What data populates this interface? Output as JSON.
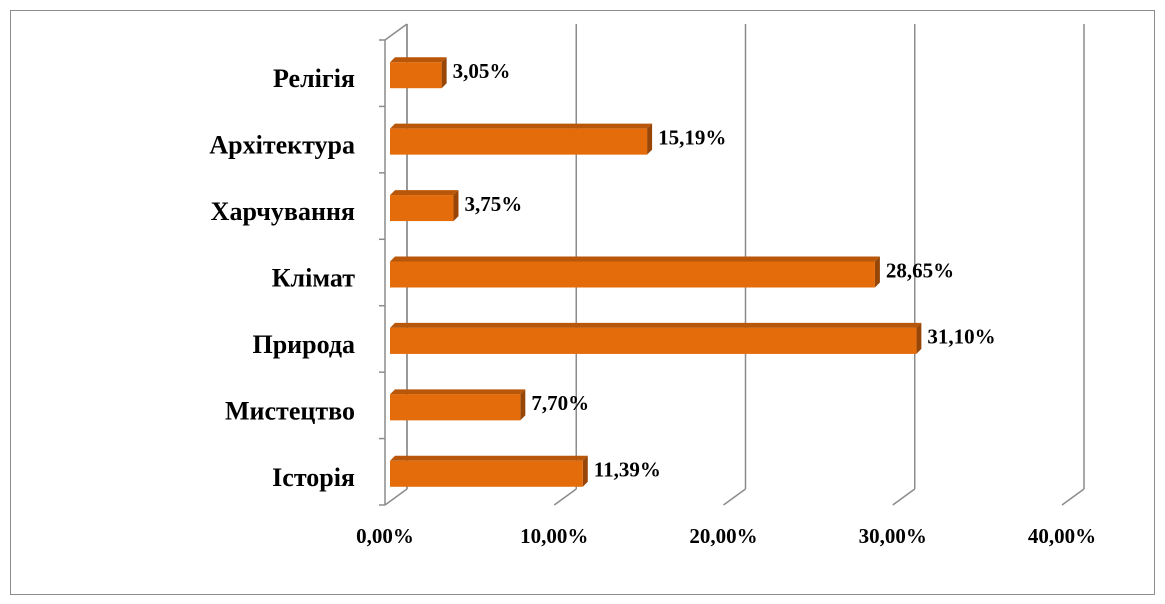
{
  "chart_data": {
    "type": "bar3d_horizontal",
    "categories": [
      "Релігія",
      "Архітектура",
      "Харчування",
      "Клімат",
      "Природа",
      "Мистецтво",
      "Історія"
    ],
    "values": [
      3.05,
      15.19,
      3.75,
      28.65,
      31.1,
      7.7,
      11.39
    ],
    "value_labels": [
      "3,05%",
      "15,19%",
      "3,75%",
      "28,65%",
      "31,10%",
      "7,70%",
      "11,39%"
    ],
    "color": "#e46c0a",
    "xlim": [
      0,
      40
    ],
    "xticks": [
      {
        "value": 0,
        "label": "0,00%"
      },
      {
        "value": 10,
        "label": "10,00%"
      },
      {
        "value": 20,
        "label": "20,00%"
      },
      {
        "value": 30,
        "label": "30,00%"
      },
      {
        "value": 40,
        "label": "40,00%"
      }
    ],
    "grid": true
  }
}
